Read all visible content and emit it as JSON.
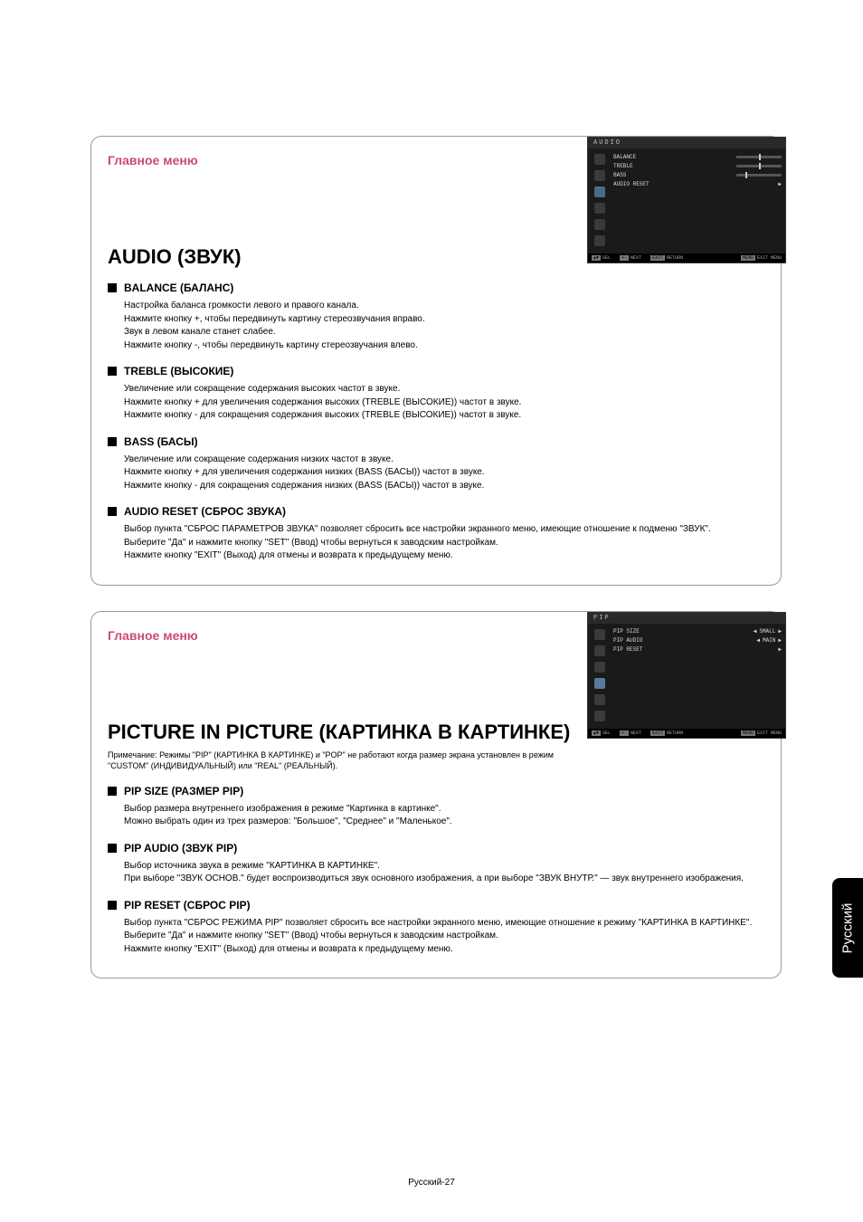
{
  "lang_tab": "Русский",
  "page_number": "Русский-27",
  "audio_section": {
    "main_menu": "Главное меню",
    "title": "AUDIO (ЗВУК)",
    "osd": {
      "header": "AUDIO",
      "items": [
        "BALANCE",
        "TREBLE",
        "BASS",
        "AUDIO RESET"
      ],
      "footer_sel": "SEL",
      "footer_next": "NEXT",
      "footer_return": "RETURN",
      "footer_exit": "EXIT MENU"
    },
    "balance": {
      "title": "BALANCE (БАЛАНС)",
      "l1": "Настройка баланса громкости левого и правого канала.",
      "l2": "Нажмите кнопку +, чтобы передвинуть картину стереозвучания вправо.",
      "l3": "Звук в левом канале станет слабее.",
      "l4": "Нажмите кнопку -, чтобы передвинуть картину стереозвучания влево."
    },
    "treble": {
      "title": "TREBLE (ВЫСОКИЕ)",
      "l1": "Увеличение или сокращение содержания высоких частот в звуке.",
      "l2": "Нажмите кнопку + для увеличения содержания высоких (TREBLE (ВЫСОКИЕ)) частот в звуке.",
      "l3": "Нажмите кнопку - для сокращения содержания высоких (TREBLE (ВЫСОКИЕ)) частот в звуке."
    },
    "bass": {
      "title": "BASS (БАСЫ)",
      "l1": "Увеличение или сокращение содержания низких частот в звуке.",
      "l2": "Нажмите кнопку + для увеличения содержания низких (BASS (БАСЫ)) частот в звуке.",
      "l3": "Нажмите кнопку - для сокращения содержания низких (BASS (БАСЫ)) частот в звуке."
    },
    "reset": {
      "title": "AUDIO RESET (СБРОС ЗВУКА)",
      "l1": "Выбор пункта \"СБРОС ПАРАМЕТРОВ ЗВУКА\" позволяет сбросить все настройки экранного меню, имеющие отношение к подменю \"ЗВУК\".",
      "l2": "Выберите \"Да\" и нажмите кнопку \"SET\" (Ввод) чтобы вернуться к заводским настройкам.",
      "l3": "Нажмите кнопку \"EXIT\" (Выход) для отмены и возврата к предыдущему меню."
    }
  },
  "pip_section": {
    "main_menu": "Главное меню",
    "title": "PICTURE IN PICTURE (КАРТИНКА В КАРТИНКЕ)",
    "note1": "Примечание: Режимы \"PIP\" (КАРТИНКА В КАРТИНКЕ) и \"POP\" не работают когда размер экрана установлен в режим",
    "note2": "\"CUSTOM\" (ИНДИВИДУАЛЬНЫЙ) или \"REAL\" (РЕАЛЬНЫЙ).",
    "osd": {
      "header": "PIP",
      "items": [
        "PIP SIZE",
        "PIP AUDIO",
        "PIP RESET"
      ],
      "val_size": "SMALL",
      "val_audio": "MAIN",
      "footer_sel": "SEL",
      "footer_next": "NEXT",
      "footer_return": "RETURN",
      "footer_exit": "EXIT MENU"
    },
    "size": {
      "title": "PIP SIZE (РАЗМЕР PIP)",
      "l1": "Выбор размера внутреннего изображения в режиме \"Картинка в картинке\".",
      "l2": "Можно выбрать один из трех размеров: \"Большое\", \"Среднее\" и \"Маленькое\"."
    },
    "audio": {
      "title": "PIP AUDIO (ЗВУК PIP)",
      "l1": "Выбор источника звука в режиме \"КАРТИНКА В КАРТИНКЕ\".",
      "l2": "При выборе \"ЗВУК ОСНОВ.\" будет воспроизводиться звук основного изображения, а при выборе \"ЗВУК ВНУТР.\" — звук внутреннего изображения."
    },
    "reset": {
      "title": "PIP RESET (СБРОС PIP)",
      "l1": "Выбор пункта \"СБРОС РЕЖИМА PIP\" позволяет сбросить все настройки экранного меню, имеющие отношение к режиму \"КАРТИНКА В КАРТИНКЕ\".",
      "l2": "Выберите \"Да\" и нажмите кнопку \"SET\" (Ввод) чтобы вернуться к заводским настройкам.",
      "l3": "Нажмите кнопку \"EXIT\" (Выход) для отмены и возврата к предыдущему меню."
    }
  }
}
